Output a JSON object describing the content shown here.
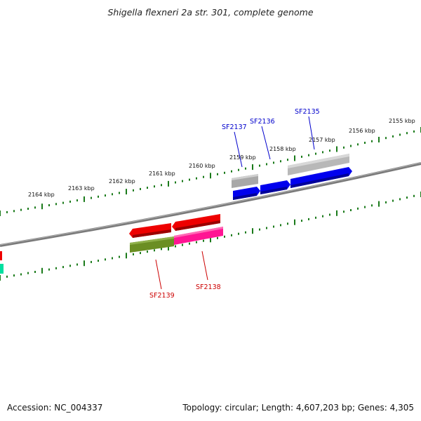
{
  "title": "Shigella flexneri 2a str. 301, complete genome",
  "footer": {
    "accession": "Accession: NC_004337",
    "summary": "Topology: circular; Length: 4,607,203 bp; Genes: 4,305"
  },
  "axis": {
    "unit": "kbp",
    "ticks": [
      "2155 kbp",
      "2156 kbp",
      "2157 kbp",
      "2158 kbp",
      "2159 kbp",
      "2160 kbp",
      "2161 kbp",
      "2162 kbp",
      "2163 kbp",
      "2164 kbp"
    ]
  },
  "genes": [
    {
      "name": "SF2135",
      "strand": "+",
      "color": "#0000cc"
    },
    {
      "name": "SF2136",
      "strand": "+",
      "color": "#0000cc"
    },
    {
      "name": "SF2137",
      "strand": "+",
      "color": "#0000cc"
    },
    {
      "name": "SF2138",
      "strand": "-",
      "color": "#cc0000"
    },
    {
      "name": "SF2139",
      "strand": "-",
      "color": "#cc0000"
    }
  ],
  "colors": {
    "backbone": "#808080",
    "tick": "#1a7a1a",
    "forward_cds": "#0000ee",
    "reverse_cds": "#ee0000",
    "feature_gray": "#b0b0b0",
    "feature_olive": "#6b8e23",
    "feature_pink": "#ff1493",
    "feature_teal": "#00e0a0"
  }
}
